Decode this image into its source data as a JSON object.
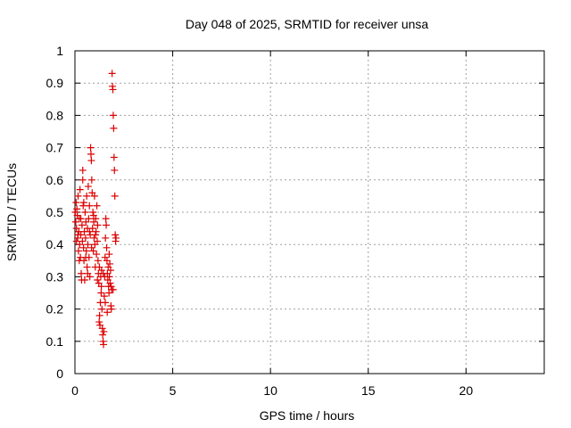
{
  "chart_data": {
    "type": "scatter",
    "title": "Day 048 of 2025, SRMTID for receiver unsa",
    "xlabel": "GPS time / hours",
    "ylabel": "SRMTID / TECUs",
    "xlim": [
      0,
      24
    ],
    "ylim": [
      0,
      1
    ],
    "xticks": [
      0,
      5,
      10,
      15,
      20
    ],
    "yticks": [
      0,
      0.1,
      0.2,
      0.3,
      0.4,
      0.5,
      0.6,
      0.7,
      0.8,
      0.9,
      1
    ],
    "xtick_labels": [
      "0",
      "5",
      "10",
      "15",
      "20"
    ],
    "ytick_labels": [
      "0",
      "0.1",
      "0.2",
      "0.3",
      "0.4",
      "0.5",
      "0.6",
      "0.7",
      "0.8",
      "0.9",
      "1"
    ],
    "grid": true,
    "marker": "plus",
    "marker_color": "#dd0000",
    "series": [
      {
        "points": [
          [
            0.02,
            0.5
          ],
          [
            0.04,
            0.47
          ],
          [
            0.06,
            0.53
          ],
          [
            0.08,
            0.45
          ],
          [
            0.1,
            0.51
          ],
          [
            0.12,
            0.49
          ],
          [
            0.14,
            0.42
          ],
          [
            0.16,
            0.55
          ],
          [
            0.18,
            0.38
          ],
          [
            0.2,
            0.44
          ],
          [
            0.22,
            0.48
          ],
          [
            0.24,
            0.4
          ],
          [
            0.26,
            0.57
          ],
          [
            0.28,
            0.36
          ],
          [
            0.3,
            0.43
          ],
          [
            0.32,
            0.31
          ],
          [
            0.34,
            0.29
          ],
          [
            0.36,
            0.46
          ],
          [
            0.38,
            0.41
          ],
          [
            0.4,
            0.63
          ],
          [
            0.4,
            0.6
          ],
          [
            0.42,
            0.52
          ],
          [
            0.44,
            0.39
          ],
          [
            0.46,
            0.35
          ],
          [
            0.48,
            0.44
          ],
          [
            0.5,
            0.29
          ],
          [
            0.52,
            0.5
          ],
          [
            0.54,
            0.42
          ],
          [
            0.56,
            0.47
          ],
          [
            0.58,
            0.38
          ],
          [
            0.6,
            0.55
          ],
          [
            0.62,
            0.33
          ],
          [
            0.64,
            0.45
          ],
          [
            0.66,
            0.4
          ],
          [
            0.68,
            0.58
          ],
          [
            0.7,
            0.48
          ],
          [
            0.72,
            0.36
          ],
          [
            0.74,
            0.52
          ],
          [
            0.76,
            0.3
          ],
          [
            0.78,
            0.43
          ],
          [
            0.8,
            0.7
          ],
          [
            0.82,
            0.68
          ],
          [
            0.84,
            0.66
          ],
          [
            0.86,
            0.6
          ],
          [
            0.88,
            0.56
          ],
          [
            0.9,
            0.45
          ],
          [
            0.92,
            0.5
          ],
          [
            0.94,
            0.38
          ],
          [
            0.96,
            0.47
          ],
          [
            0.98,
            0.42
          ],
          [
            1.0,
            0.55
          ],
          [
            1.02,
            0.4
          ],
          [
            1.04,
            0.33
          ],
          [
            1.06,
            0.48
          ],
          [
            1.08,
            0.44
          ],
          [
            1.1,
            0.37
          ],
          [
            1.12,
            0.52
          ],
          [
            1.14,
            0.41
          ],
          [
            1.16,
            0.46
          ],
          [
            1.18,
            0.35
          ],
          [
            1.2,
            0.31
          ],
          [
            1.22,
            0.28
          ],
          [
            1.24,
            0.16
          ],
          [
            1.26,
            0.18
          ],
          [
            1.28,
            0.15
          ],
          [
            1.3,
            0.22
          ],
          [
            1.32,
            0.3
          ],
          [
            1.34,
            0.25
          ],
          [
            1.36,
            0.32
          ],
          [
            1.38,
            0.2
          ],
          [
            1.4,
            0.14
          ],
          [
            1.42,
            0.12
          ],
          [
            1.44,
            0.1
          ],
          [
            1.46,
            0.09
          ],
          [
            1.48,
            0.13
          ],
          [
            1.5,
            0.24
          ],
          [
            1.52,
            0.3
          ],
          [
            1.54,
            0.36
          ],
          [
            1.56,
            0.42
          ],
          [
            1.58,
            0.48
          ],
          [
            1.6,
            0.46
          ],
          [
            1.62,
            0.39
          ],
          [
            1.64,
            0.35
          ],
          [
            1.66,
            0.31
          ],
          [
            1.68,
            0.29
          ],
          [
            1.7,
            0.33
          ],
          [
            1.72,
            0.27
          ],
          [
            1.74,
            0.25
          ],
          [
            1.76,
            0.3
          ],
          [
            1.78,
            0.34
          ],
          [
            1.8,
            0.28
          ],
          [
            1.82,
            0.32
          ],
          [
            1.84,
            0.21
          ],
          [
            1.86,
            0.2
          ],
          [
            1.88,
            0.26
          ],
          [
            1.9,
            0.93
          ],
          [
            1.92,
            0.89
          ],
          [
            1.94,
            0.88
          ],
          [
            1.96,
            0.8
          ],
          [
            1.98,
            0.76
          ],
          [
            2.0,
            0.67
          ],
          [
            2.02,
            0.63
          ],
          [
            2.04,
            0.55
          ],
          [
            2.06,
            0.43
          ],
          [
            2.08,
            0.41
          ],
          [
            2.1,
            0.42
          ],
          [
            0.08,
            0.41
          ],
          [
            0.15,
            0.43
          ],
          [
            0.22,
            0.35
          ],
          [
            0.3,
            0.48
          ],
          [
            0.45,
            0.53
          ],
          [
            0.55,
            0.36
          ],
          [
            0.65,
            0.31
          ],
          [
            0.75,
            0.44
          ],
          [
            0.85,
            0.39
          ],
          [
            0.95,
            0.49
          ],
          [
            1.05,
            0.43
          ],
          [
            1.15,
            0.29
          ],
          [
            1.25,
            0.33
          ],
          [
            1.35,
            0.27
          ],
          [
            1.45,
            0.31
          ],
          [
            1.55,
            0.22
          ],
          [
            1.65,
            0.19
          ],
          [
            1.75,
            0.37
          ],
          [
            1.85,
            0.27
          ],
          [
            1.95,
            0.26
          ]
        ]
      }
    ]
  }
}
